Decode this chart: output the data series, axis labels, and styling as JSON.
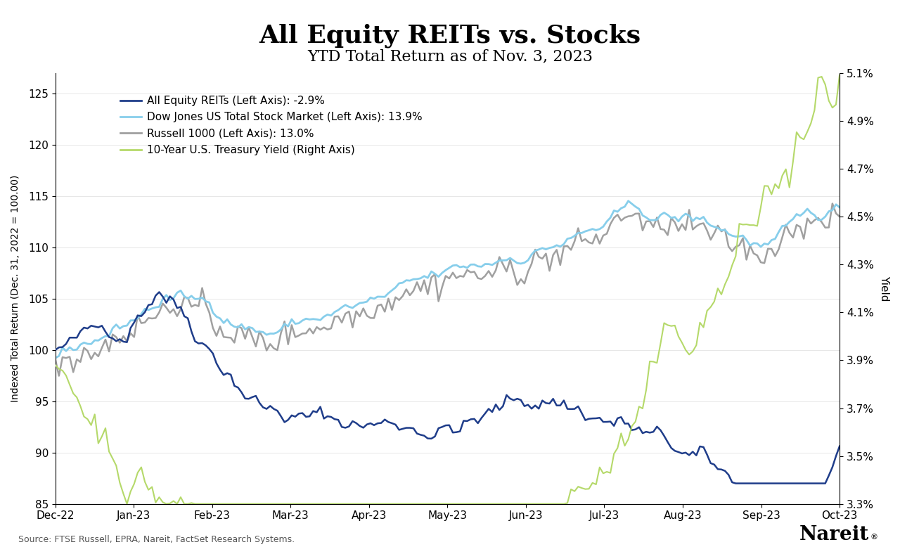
{
  "title": "All Equity REITs vs. Stocks",
  "subtitle": "YTD Total Return as of Nov. 3, 2023",
  "source": "Source: FTSE Russell, EPRA, Nareit, FactSet Research Systems.",
  "ylabel_left": "Indexed Total Return (Dec. 31, 2022 = 100.00)",
  "ylabel_right": "Yield",
  "ylim_left": [
    85,
    127
  ],
  "ylim_right": [
    3.3,
    5.1
  ],
  "yticks_left": [
    85,
    90,
    95,
    100,
    105,
    110,
    115,
    120,
    125
  ],
  "yticks_right_vals": [
    3.3,
    3.5,
    3.7,
    3.9,
    4.1,
    4.3,
    4.5,
    4.7,
    4.9,
    5.1
  ],
  "yticks_right_labels": [
    "3.3%",
    "3.5%",
    "3.7%",
    "3.9%",
    "4.1%",
    "4.3%",
    "4.5%",
    "4.7%",
    "4.9%",
    "5.1%"
  ],
  "xtick_labels": [
    "Dec-22",
    "Jan-23",
    "Feb-23",
    "Mar-23",
    "Apr-23",
    "May-23",
    "Jun-23",
    "Jul-23",
    "Aug-23",
    "Sep-23",
    "Oct-23"
  ],
  "colors": {
    "reits": "#1f3d8a",
    "dow": "#87ceeb",
    "russell": "#a0a0a0",
    "treasury": "#b5d96a"
  },
  "legend_labels": [
    "All Equity REITs (Left Axis): -2.9%",
    "Dow Jones US Total Stock Market (Left Axis): 13.9%",
    "Russell 1000 (Left Axis): 13.0%",
    "10-Year U.S. Treasury Yield (Right Axis)"
  ],
  "background_color": "#ffffff",
  "title_fontsize": 26,
  "subtitle_fontsize": 16
}
